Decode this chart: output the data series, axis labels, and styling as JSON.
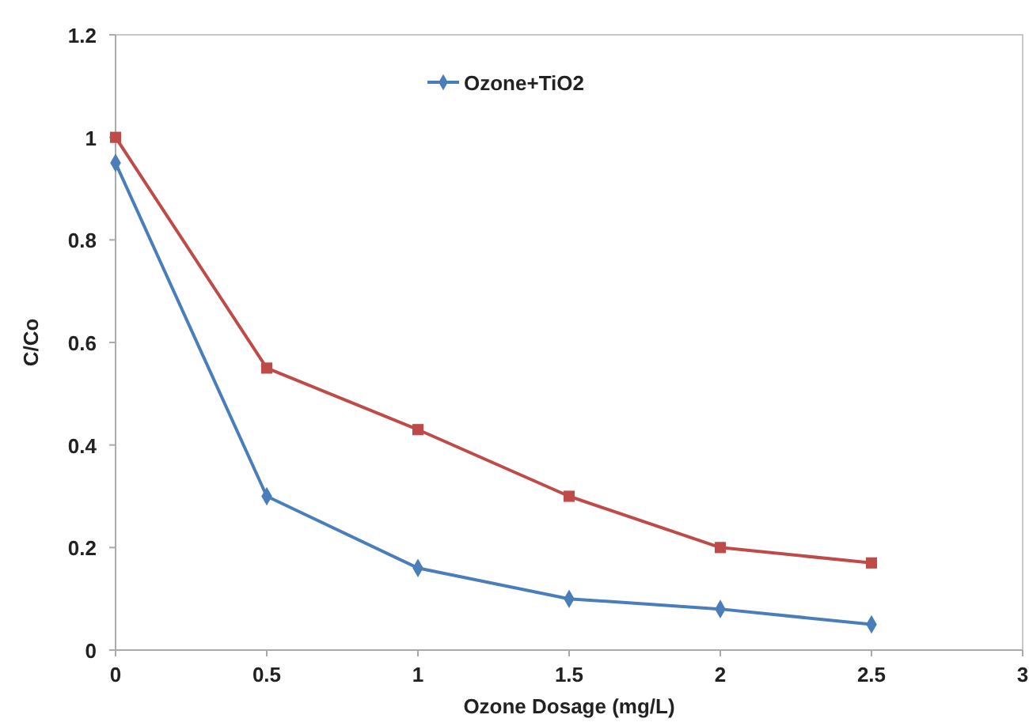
{
  "chart_data": {
    "type": "line",
    "xlabel": "Ozone Dosage (mg/L)",
    "ylabel": "C/Co",
    "x": [
      0,
      0.5,
      1,
      1.5,
      2,
      2.5
    ],
    "series": [
      {
        "name": "Ozone+TiO2",
        "color": "#4a7ebb",
        "marker": "diamond",
        "values": [
          0.95,
          0.3,
          0.16,
          0.1,
          0.08,
          0.05
        ]
      },
      {
        "color": "#be4b48",
        "marker": "square",
        "values": [
          1,
          0.55,
          0.43,
          0.3,
          0.2,
          0.17
        ]
      }
    ],
    "xlim": [
      0,
      3
    ],
    "xticks": [
      0,
      0.5,
      1,
      1.5,
      2,
      2.5,
      3
    ],
    "ylim": [
      0,
      1.2
    ],
    "yticks": [
      0,
      0.2,
      0.4,
      0.6,
      0.8,
      1,
      1.2
    ],
    "grid": false,
    "legend": "top"
  }
}
